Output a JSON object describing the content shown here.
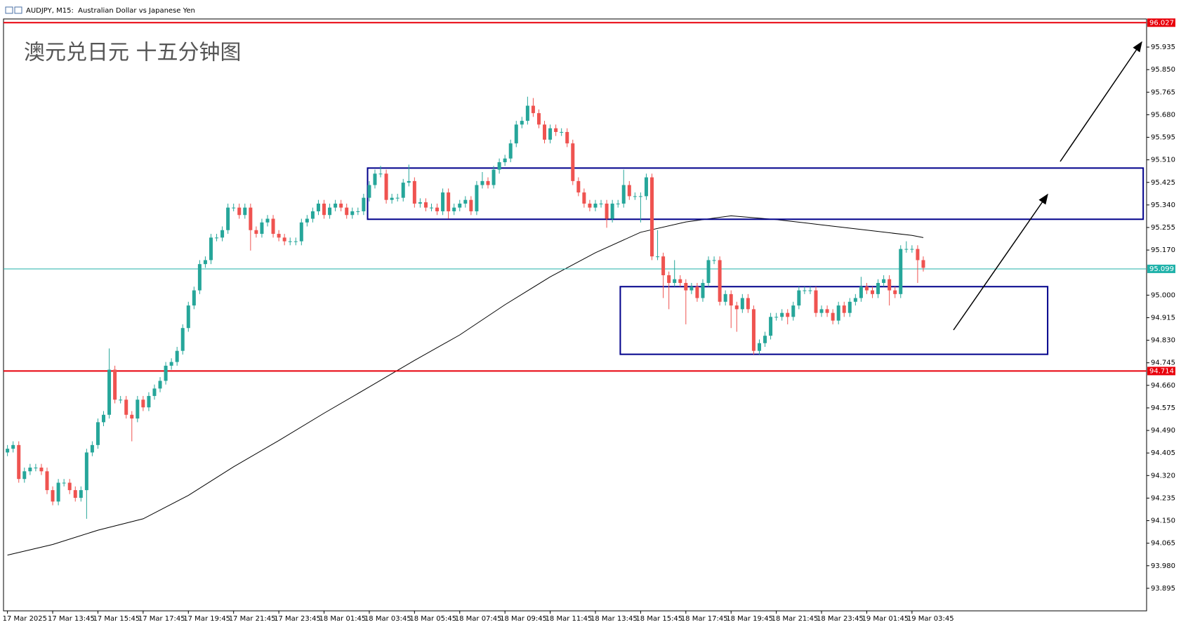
{
  "chart_data": {
    "type": "candlestick",
    "title": "澳元兑日元 十五分钟图",
    "subtitle": "AUDJPY, M15:  Australian Dollar vs Japanese Yen",
    "up_color": "#26a69a",
    "down_color": "#ef5350",
    "ylim": [
      93.81,
      96.041
    ],
    "xlim": [
      -0.7,
      201.5
    ],
    "yticks": [
      95.935,
      {
        "value": 95.85,
        "label": "95.850"
      },
      95.765,
      {
        "value": 95.68,
        "label": "95.680"
      },
      95.595,
      {
        "value": 95.51,
        "label": "95.510"
      },
      95.425,
      {
        "value": 95.34,
        "label": "95.340"
      },
      95.255,
      {
        "value": 95.17,
        "label": "95.170"
      },
      {
        "value": 95,
        "label": "95.000"
      },
      94.915,
      {
        "value": 94.83,
        "label": "94.830"
      },
      94.745,
      {
        "value": 94.66,
        "label": "94.660"
      },
      94.575,
      {
        "value": 94.49,
        "label": "94.490"
      },
      94.405,
      {
        "value": 94.32,
        "label": "94.320"
      },
      94.235,
      {
        "value": 94.15,
        "label": "94.150"
      },
      94.065,
      {
        "value": 93.98,
        "label": "93.980"
      },
      93.895
    ],
    "categories": [
      "17 Mar 2025",
      null,
      null,
      null,
      null,
      null,
      null,
      null,
      "17 Mar 13:45",
      null,
      null,
      null,
      null,
      null,
      null,
      null,
      "17 Mar 15:45",
      null,
      null,
      null,
      null,
      null,
      null,
      null,
      "17 Mar 17:45",
      null,
      null,
      null,
      null,
      null,
      null,
      null,
      "17 Mar 19:45",
      null,
      null,
      null,
      null,
      null,
      null,
      null,
      "17 Mar 21:45",
      null,
      null,
      null,
      null,
      null,
      null,
      null,
      "17 Mar 23:45",
      null,
      null,
      null,
      null,
      null,
      null,
      null,
      "18 Mar 01:45",
      null,
      null,
      null,
      null,
      null,
      null,
      null,
      "18 Mar 03:45",
      null,
      null,
      null,
      null,
      null,
      null,
      null,
      "18 Mar 05:45",
      null,
      null,
      null,
      null,
      null,
      null,
      null,
      "18 Mar 07:45",
      null,
      null,
      null,
      null,
      null,
      null,
      null,
      "18 Mar 09:45",
      null,
      null,
      null,
      null,
      null,
      null,
      null,
      "18 Mar 11:45",
      null,
      null,
      null,
      null,
      null,
      null,
      null,
      "18 Mar 13:45",
      null,
      null,
      null,
      null,
      null,
      null,
      null,
      "18 Mar 15:45",
      null,
      null,
      null,
      null,
      null,
      null,
      null,
      "18 Mar 17:45",
      null,
      null,
      null,
      null,
      null,
      null,
      null,
      "18 Mar 19:45",
      null,
      null,
      null,
      null,
      null,
      null,
      null,
      "18 Mar 21:45",
      null,
      null,
      null,
      null,
      null,
      null,
      null,
      "18 Mar 23:45",
      null,
      null,
      null,
      null,
      null,
      null,
      null,
      "19 Mar 01:45",
      null,
      null,
      null,
      null,
      null,
      null,
      null,
      "19 Mar 03:45",
      null,
      null
    ],
    "candles": [
      [
        94.407,
        94.435,
        94.393,
        94.421
      ],
      [
        94.421,
        94.449,
        94.407,
        94.435
      ],
      [
        94.435,
        94.449,
        94.293,
        94.307
      ],
      [
        94.307,
        94.35,
        94.293,
        94.336
      ],
      [
        94.336,
        94.364,
        94.322,
        94.35
      ],
      [
        94.35,
        94.364,
        94.336,
        94.35
      ],
      [
        94.35,
        94.364,
        94.322,
        94.336
      ],
      [
        94.336,
        94.35,
        94.25,
        94.265
      ],
      [
        94.265,
        94.279,
        94.208,
        94.222
      ],
      [
        94.222,
        94.307,
        94.208,
        94.293
      ],
      [
        94.293,
        94.307,
        94.279,
        94.293
      ],
      [
        94.293,
        94.307,
        94.25,
        94.265
      ],
      [
        94.265,
        94.279,
        94.222,
        94.236
      ],
      [
        94.236,
        94.279,
        94.222,
        94.265
      ],
      [
        94.265,
        94.421,
        94.157,
        94.407
      ],
      [
        94.407,
        94.449,
        94.393,
        94.435
      ],
      [
        94.435,
        94.535,
        94.421,
        94.521
      ],
      [
        94.521,
        94.563,
        94.506,
        94.549
      ],
      [
        94.549,
        94.799,
        94.535,
        94.719
      ],
      [
        94.719,
        94.734,
        94.592,
        94.606
      ],
      [
        94.606,
        94.62,
        94.592,
        94.606
      ],
      [
        94.606,
        94.62,
        94.535,
        94.549
      ],
      [
        94.549,
        94.563,
        94.449,
        94.535
      ],
      [
        94.535,
        94.62,
        94.521,
        94.606
      ],
      [
        94.606,
        94.62,
        94.563,
        94.577
      ],
      [
        94.577,
        94.634,
        94.563,
        94.62
      ],
      [
        94.62,
        94.663,
        94.606,
        94.648
      ],
      [
        94.648,
        94.691,
        94.634,
        94.677
      ],
      [
        94.677,
        94.748,
        94.663,
        94.734
      ],
      [
        94.734,
        94.762,
        94.719,
        94.748
      ],
      [
        94.748,
        94.805,
        94.734,
        94.79
      ],
      [
        94.79,
        94.89,
        94.776,
        94.876
      ],
      [
        94.876,
        94.975,
        94.862,
        94.961
      ],
      [
        94.961,
        95.032,
        94.947,
        95.018
      ],
      [
        95.018,
        95.132,
        95.004,
        95.117
      ],
      [
        95.117,
        95.146,
        95.103,
        95.132
      ],
      [
        95.132,
        95.231,
        95.117,
        95.217
      ],
      [
        95.217,
        95.231,
        95.203,
        95.217
      ],
      [
        95.217,
        95.259,
        95.203,
        95.245
      ],
      [
        95.245,
        95.345,
        95.231,
        95.33
      ],
      [
        95.33,
        95.345,
        95.316,
        95.33
      ],
      [
        95.33,
        95.345,
        95.288,
        95.302
      ],
      [
        95.302,
        95.345,
        95.288,
        95.33
      ],
      [
        95.33,
        95.345,
        95.168,
        95.245
      ],
      [
        95.245,
        95.259,
        95.217,
        95.231
      ],
      [
        95.231,
        95.288,
        95.217,
        95.274
      ],
      [
        95.274,
        95.302,
        95.259,
        95.288
      ],
      [
        95.288,
        95.302,
        95.217,
        95.231
      ],
      [
        95.231,
        95.245,
        95.203,
        95.217
      ],
      [
        95.217,
        95.231,
        95.188,
        95.203
      ],
      [
        95.203,
        95.217,
        95.188,
        95.203
      ],
      [
        95.203,
        95.217,
        95.188,
        95.203
      ],
      [
        95.203,
        95.288,
        95.188,
        95.274
      ],
      [
        95.274,
        95.302,
        95.259,
        95.288
      ],
      [
        95.288,
        95.33,
        95.274,
        95.316
      ],
      [
        95.316,
        95.359,
        95.302,
        95.345
      ],
      [
        95.345,
        95.359,
        95.288,
        95.302
      ],
      [
        95.302,
        95.345,
        95.288,
        95.33
      ],
      [
        95.33,
        95.359,
        95.316,
        95.345
      ],
      [
        95.345,
        95.359,
        95.316,
        95.33
      ],
      [
        95.33,
        95.345,
        95.288,
        95.302
      ],
      [
        95.302,
        95.33,
        95.288,
        95.316
      ],
      [
        95.316,
        95.33,
        95.302,
        95.316
      ],
      [
        95.316,
        95.382,
        95.302,
        95.367
      ],
      [
        95.367,
        95.43,
        95.353,
        95.415
      ],
      [
        95.415,
        95.473,
        95.402,
        95.458
      ],
      [
        95.458,
        95.487,
        95.444,
        95.458
      ],
      [
        95.458,
        95.473,
        95.345,
        95.359
      ],
      [
        95.359,
        95.382,
        95.345,
        95.367
      ],
      [
        95.367,
        95.382,
        95.353,
        95.367
      ],
      [
        95.367,
        95.438,
        95.353,
        95.424
      ],
      [
        95.424,
        95.492,
        95.41,
        95.43
      ],
      [
        95.43,
        95.444,
        95.33,
        95.345
      ],
      [
        95.345,
        95.365,
        95.33,
        95.35
      ],
      [
        95.35,
        95.365,
        95.316,
        95.33
      ],
      [
        95.33,
        95.345,
        95.316,
        95.33
      ],
      [
        95.33,
        95.345,
        95.302,
        95.316
      ],
      [
        95.316,
        95.402,
        95.302,
        95.387
      ],
      [
        95.387,
        95.402,
        95.288,
        95.316
      ],
      [
        95.316,
        95.345,
        95.302,
        95.33
      ],
      [
        95.33,
        95.359,
        95.316,
        95.345
      ],
      [
        95.345,
        95.373,
        95.33,
        95.359
      ],
      [
        95.359,
        95.373,
        95.302,
        95.316
      ],
      [
        95.316,
        95.43,
        95.302,
        95.415
      ],
      [
        95.415,
        95.464,
        95.402,
        95.43
      ],
      [
        95.43,
        95.444,
        95.402,
        95.415
      ],
      [
        95.415,
        95.487,
        95.402,
        95.473
      ],
      [
        95.473,
        95.515,
        95.458,
        95.501
      ],
      [
        95.501,
        95.529,
        95.487,
        95.515
      ],
      [
        95.515,
        95.586,
        95.501,
        95.572
      ],
      [
        95.572,
        95.657,
        95.558,
        95.643
      ],
      [
        95.643,
        95.672,
        95.629,
        95.657
      ],
      [
        95.657,
        95.748,
        95.643,
        95.714
      ],
      [
        95.714,
        95.743,
        95.672,
        95.686
      ],
      [
        95.686,
        95.7,
        95.629,
        95.643
      ],
      [
        95.643,
        95.657,
        95.572,
        95.586
      ],
      [
        95.586,
        95.643,
        95.572,
        95.629
      ],
      [
        95.629,
        95.643,
        95.6,
        95.615
      ],
      [
        95.615,
        95.629,
        95.6,
        95.615
      ],
      [
        95.615,
        95.629,
        95.558,
        95.572
      ],
      [
        95.572,
        95.586,
        95.415,
        95.43
      ],
      [
        95.43,
        95.444,
        95.373,
        95.387
      ],
      [
        95.387,
        95.402,
        95.33,
        95.345
      ],
      [
        95.345,
        95.359,
        95.316,
        95.33
      ],
      [
        95.33,
        95.359,
        95.316,
        95.345
      ],
      [
        95.345,
        95.359,
        95.33,
        95.345
      ],
      [
        95.345,
        95.359,
        95.254,
        95.288
      ],
      [
        95.288,
        95.359,
        95.274,
        95.345
      ],
      [
        95.345,
        95.359,
        95.33,
        95.345
      ],
      [
        95.345,
        95.473,
        95.33,
        95.415
      ],
      [
        95.415,
        95.43,
        95.359,
        95.373
      ],
      [
        95.373,
        95.387,
        95.359,
        95.373
      ],
      [
        95.373,
        95.387,
        95.274,
        95.373
      ],
      [
        95.373,
        95.458,
        95.359,
        95.444
      ],
      [
        95.444,
        95.458,
        95.132,
        95.146
      ],
      [
        95.146,
        95.245,
        95.132,
        95.146
      ],
      [
        95.146,
        95.16,
        94.989,
        95.075
      ],
      [
        95.075,
        95.089,
        94.947,
        95.046
      ],
      [
        95.046,
        95.132,
        95.032,
        95.06
      ],
      [
        95.06,
        95.075,
        95.032,
        95.046
      ],
      [
        95.046,
        95.06,
        94.89,
        95.018
      ],
      [
        95.018,
        95.046,
        95.004,
        95.032
      ],
      [
        95.032,
        95.046,
        94.975,
        94.989
      ],
      [
        94.989,
        95.06,
        94.975,
        95.046
      ],
      [
        95.046,
        95.146,
        95.032,
        95.132
      ],
      [
        95.132,
        95.146,
        95.117,
        95.132
      ],
      [
        95.132,
        95.146,
        94.961,
        94.975
      ],
      [
        94.975,
        95.018,
        94.961,
        95.004
      ],
      [
        95.004,
        95.018,
        94.876,
        94.961
      ],
      [
        94.961,
        94.975,
        94.862,
        94.947
      ],
      [
        94.947,
        95.004,
        94.933,
        94.989
      ],
      [
        94.989,
        95.004,
        94.933,
        94.947
      ],
      [
        94.947,
        94.961,
        94.776,
        94.79
      ],
      [
        94.79,
        94.833,
        94.776,
        94.819
      ],
      [
        94.819,
        94.862,
        94.805,
        94.847
      ],
      [
        94.847,
        94.933,
        94.833,
        94.918
      ],
      [
        94.918,
        94.933,
        94.904,
        94.918
      ],
      [
        94.918,
        94.947,
        94.904,
        94.933
      ],
      [
        94.933,
        94.947,
        94.89,
        94.918
      ],
      [
        94.918,
        94.975,
        94.904,
        94.961
      ],
      [
        94.961,
        95.032,
        94.947,
        95.018
      ],
      [
        95.018,
        95.032,
        95.004,
        95.018
      ],
      [
        95.018,
        95.032,
        95.004,
        95.018
      ],
      [
        95.018,
        95.032,
        94.918,
        94.933
      ],
      [
        94.933,
        94.961,
        94.918,
        94.947
      ],
      [
        94.947,
        94.961,
        94.918,
        94.933
      ],
      [
        94.933,
        94.947,
        94.89,
        94.904
      ],
      [
        94.904,
        94.975,
        94.89,
        94.961
      ],
      [
        94.961,
        94.975,
        94.918,
        94.933
      ],
      [
        94.933,
        94.989,
        94.918,
        94.975
      ],
      [
        94.975,
        95.004,
        94.961,
        94.989
      ],
      [
        94.989,
        95.069,
        94.975,
        95.032
      ],
      [
        95.032,
        95.046,
        95.004,
        95.018
      ],
      [
        95.018,
        95.032,
        94.989,
        95.004
      ],
      [
        95.004,
        95.06,
        94.989,
        95.046
      ],
      [
        95.046,
        95.075,
        95.032,
        95.06
      ],
      [
        95.06,
        95.075,
        94.961,
        95.018
      ],
      [
        95.018,
        95.032,
        94.989,
        95.004
      ],
      [
        95.004,
        95.188,
        94.989,
        95.174
      ],
      [
        95.174,
        95.203,
        95.16,
        95.174
      ],
      [
        95.174,
        95.188,
        95.16,
        95.174
      ],
      [
        95.174,
        95.188,
        95.046,
        95.132
      ],
      [
        95.132,
        95.146,
        95.089,
        95.103
      ]
    ],
    "moving_average": {
      "color": "#000000",
      "x": [
        0,
        8,
        16,
        24,
        32,
        40,
        48,
        56,
        64,
        72,
        80,
        88,
        96,
        104,
        112,
        120,
        128,
        136,
        144,
        152,
        160,
        162
      ],
      "values": [
        94.02,
        94.06,
        94.114,
        94.157,
        94.245,
        94.353,
        94.452,
        94.555,
        94.654,
        94.754,
        94.85,
        94.964,
        95.069,
        95.16,
        95.237,
        95.276,
        95.299,
        95.285,
        95.265,
        95.245,
        95.225,
        95.217
      ]
    },
    "levels": [
      {
        "value": 96.027,
        "color": "#e8000b"
      },
      {
        "value": 94.714,
        "color": "#e8000b"
      },
      {
        "value": 95.099,
        "color": "#20b2aa"
      }
    ],
    "boxes": [
      {
        "x": [
          63.7,
          200.9
        ],
        "y": [
          95.479,
          95.286
        ],
        "color": "#00008b"
      },
      {
        "x": [
          108.4,
          184
        ],
        "y": [
          95.032,
          94.777
        ],
        "color": "#00008b"
      }
    ]
  }
}
